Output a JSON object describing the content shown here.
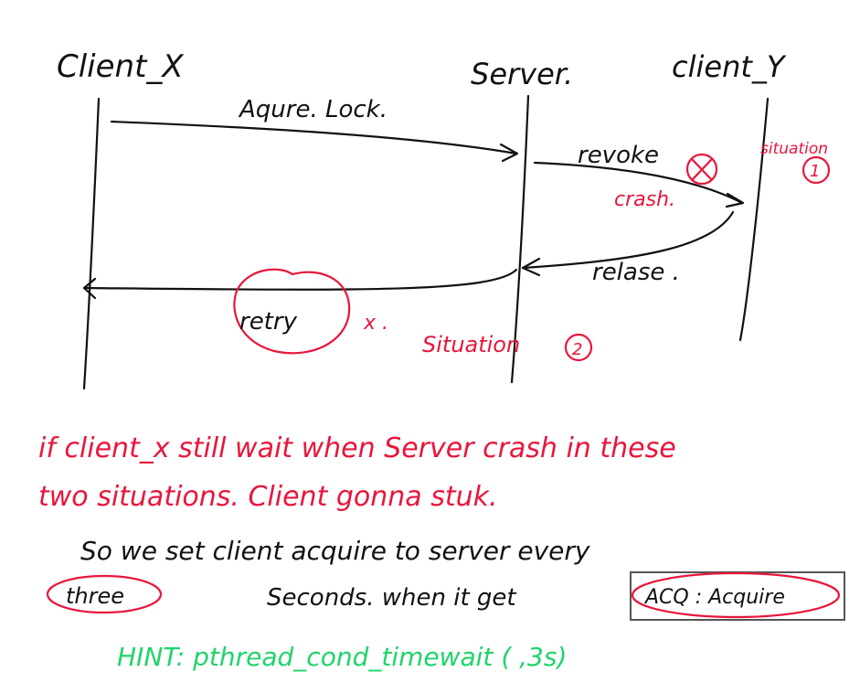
{
  "colors": {
    "black_ink": "#111111",
    "red_ink": "#e8163c",
    "green_ink": "#1fd46a"
  },
  "participants": {
    "client_x": "Client_X",
    "server": "Server.",
    "client_y": "client_Y"
  },
  "messages": {
    "acquire": "Aqure. Lock.",
    "revoke": "revoke",
    "release": "relase .",
    "retry": "retry"
  },
  "annotations": {
    "crash": "crash.",
    "situation1": "situation",
    "situation1_num": "1",
    "retry_mark": "x .",
    "situation2": "Situation",
    "situation2_num": "2"
  },
  "notes": {
    "red_line1": "if client_x still wait when Server crash in these",
    "red_line2": "two situations. Client gonna stuk.",
    "black_line1": "So we set client acquire to server every",
    "circled_three": "three",
    "black_line2": "Seconds. when it get",
    "boxed_acq": "ACQ : Acquire",
    "hint": "HINT: pthread_cond_timewait (    ,3s)"
  }
}
